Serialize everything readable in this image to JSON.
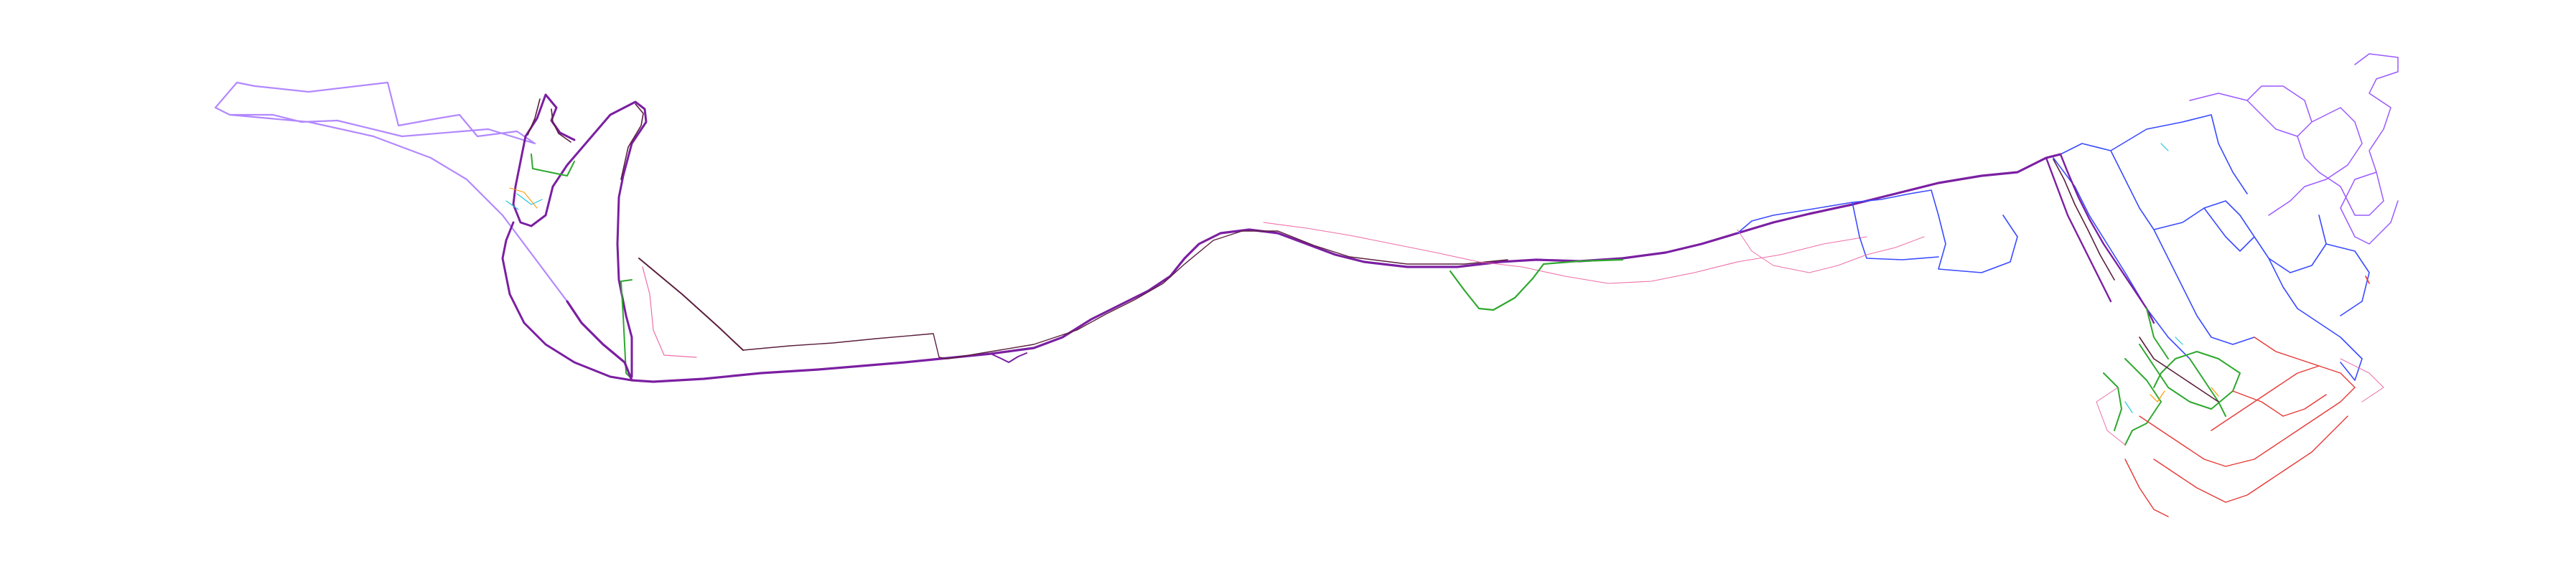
{
  "map": {
    "background_color": "#ffffff",
    "track_colors": {
      "purple": "#7b1fa2",
      "dark": "#5a1f3d",
      "violet": "#9b59ff",
      "lavender": "#b388ff",
      "blue": "#3a4bff",
      "green": "#2ea82e",
      "red": "#e53935",
      "pink": "#ec6fa8",
      "cyan": "#26c6da",
      "orange": "#ff9800"
    },
    "legend": null,
    "labels": []
  }
}
